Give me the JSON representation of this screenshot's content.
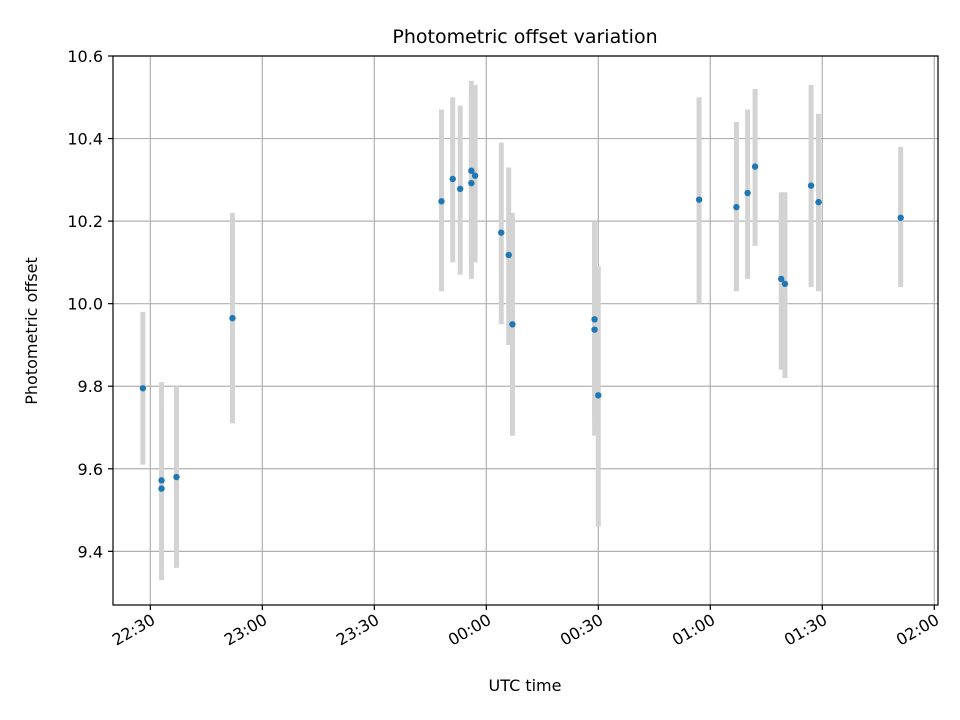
{
  "chart_data": {
    "type": "scatter",
    "title": "Photometric offset variation",
    "xlabel": "UTC time",
    "ylabel": "Photometric offset",
    "x_axis": "time",
    "xlim": [
      "22:20",
      "02:01"
    ],
    "ylim": [
      9.27,
      10.6
    ],
    "x_ticks": [
      "22:30",
      "23:00",
      "23:30",
      "00:00",
      "00:30",
      "01:00",
      "01:30",
      "02:00"
    ],
    "y_ticks": [
      9.4,
      9.6,
      9.8,
      10.0,
      10.2,
      10.4,
      10.6
    ],
    "y_tick_labels": [
      "9.4",
      "9.6",
      "9.8",
      "10.0",
      "10.2",
      "10.4",
      "10.6"
    ],
    "grid": true,
    "point_color": "#1f77b4",
    "errorbar_color": "#d3d3d3",
    "points": [
      {
        "x": "22:28",
        "y": 9.795,
        "lo": 9.61,
        "hi": 9.98
      },
      {
        "x": "22:33",
        "y": 9.552,
        "lo": 9.35,
        "hi": 9.75
      },
      {
        "x": "22:33",
        "y": 9.572,
        "lo": 9.33,
        "hi": 9.81
      },
      {
        "x": "22:37",
        "y": 9.58,
        "lo": 9.36,
        "hi": 9.8
      },
      {
        "x": "22:52",
        "y": 9.965,
        "lo": 9.71,
        "hi": 10.22
      },
      {
        "x": "23:48",
        "y": 10.248,
        "lo": 10.03,
        "hi": 10.47
      },
      {
        "x": "23:51",
        "y": 10.302,
        "lo": 10.1,
        "hi": 10.5
      },
      {
        "x": "23:53",
        "y": 10.278,
        "lo": 10.07,
        "hi": 10.48
      },
      {
        "x": "23:56",
        "y": 10.322,
        "lo": 10.1,
        "hi": 10.54
      },
      {
        "x": "23:56",
        "y": 10.292,
        "lo": 10.06,
        "hi": 10.52
      },
      {
        "x": "23:57",
        "y": 10.31,
        "lo": 10.1,
        "hi": 10.53
      },
      {
        "x": "00:04",
        "y": 10.172,
        "lo": 9.95,
        "hi": 10.39
      },
      {
        "x": "00:06",
        "y": 10.118,
        "lo": 9.9,
        "hi": 10.33
      },
      {
        "x": "00:07",
        "y": 9.95,
        "lo": 9.68,
        "hi": 10.22
      },
      {
        "x": "00:29",
        "y": 9.937,
        "lo": 9.68,
        "hi": 10.19
      },
      {
        "x": "00:29",
        "y": 9.962,
        "lo": 9.72,
        "hi": 10.2
      },
      {
        "x": "00:30",
        "y": 9.778,
        "lo": 9.46,
        "hi": 10.09
      },
      {
        "x": "00:57",
        "y": 10.252,
        "lo": 10.0,
        "hi": 10.5
      },
      {
        "x": "01:07",
        "y": 10.234,
        "lo": 10.03,
        "hi": 10.44
      },
      {
        "x": "01:10",
        "y": 10.268,
        "lo": 10.06,
        "hi": 10.47
      },
      {
        "x": "01:12",
        "y": 10.332,
        "lo": 10.14,
        "hi": 10.52
      },
      {
        "x": "01:19",
        "y": 10.06,
        "lo": 9.84,
        "hi": 10.27
      },
      {
        "x": "01:20",
        "y": 10.048,
        "lo": 9.82,
        "hi": 10.27
      },
      {
        "x": "01:27",
        "y": 10.286,
        "lo": 10.04,
        "hi": 10.53
      },
      {
        "x": "01:29",
        "y": 10.246,
        "lo": 10.03,
        "hi": 10.46
      },
      {
        "x": "01:51",
        "y": 10.208,
        "lo": 10.04,
        "hi": 10.38
      }
    ]
  }
}
